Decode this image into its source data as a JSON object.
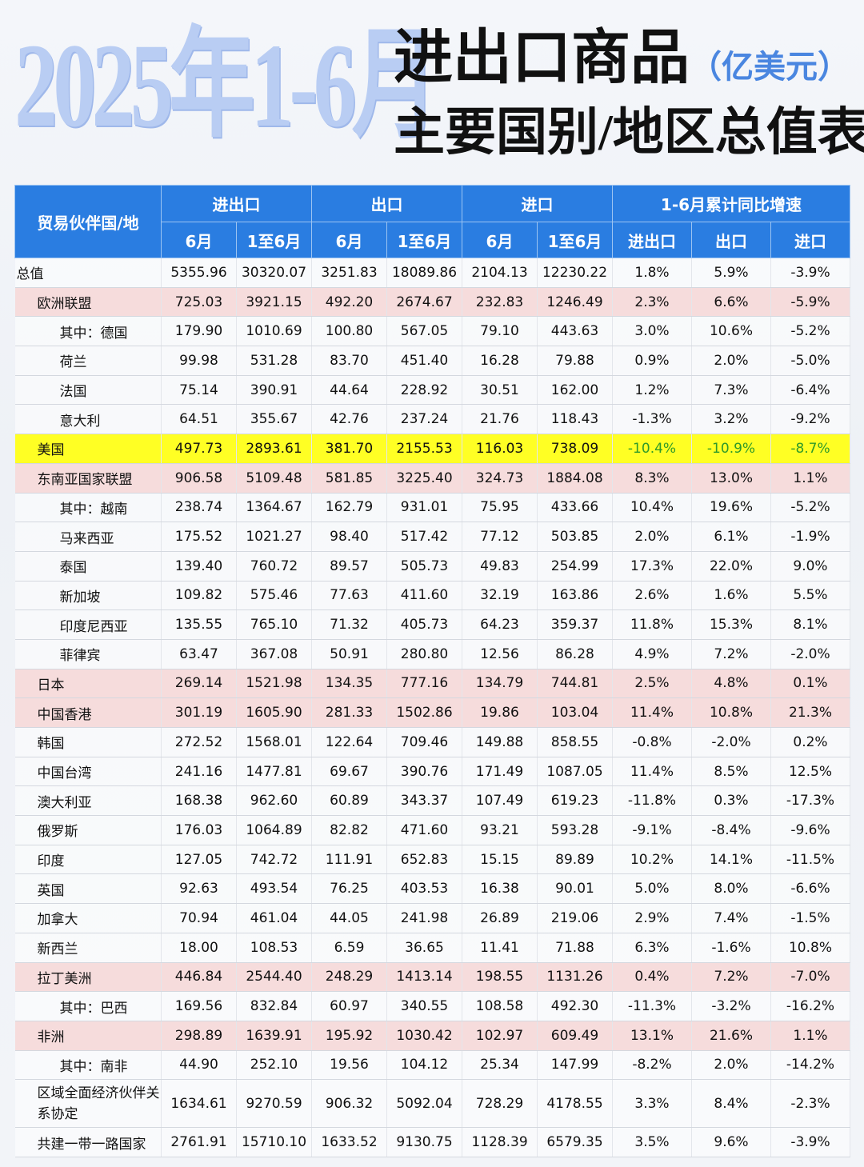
{
  "header": {
    "year_title": "2025年1-6月",
    "title_line1": "进出口商品",
    "unit": "（亿美元）",
    "title_line2": "主要国别/地区总值表"
  },
  "table": {
    "partner_header": "贸易伙伴国/地",
    "group_headers": [
      "进出口",
      "出口",
      "进口",
      "1-6月累计同比增速"
    ],
    "sub_headers": [
      "6月",
      "1至6月",
      "6月",
      "1至6月",
      "6月",
      "1至6月",
      "进出口",
      "出口",
      "进口"
    ],
    "rows": [
      {
        "name": "总值",
        "values": [
          "5355.96",
          "30320.07",
          "3251.83",
          "18089.86",
          "2104.13",
          "12230.22",
          "1.8%",
          "5.9%",
          "-3.9%"
        ]
      },
      {
        "name": "欧洲联盟",
        "values": [
          "725.03",
          "3921.15",
          "492.20",
          "2674.67",
          "232.83",
          "1246.49",
          "2.3%",
          "6.6%",
          "-5.9%"
        ]
      },
      {
        "name": "其中：德国",
        "values": [
          "179.90",
          "1010.69",
          "100.80",
          "567.05",
          "79.10",
          "443.63",
          "3.0%",
          "10.6%",
          "-5.2%"
        ]
      },
      {
        "name": "荷兰",
        "values": [
          "99.98",
          "531.28",
          "83.70",
          "451.40",
          "16.28",
          "79.88",
          "0.9%",
          "2.0%",
          "-5.0%"
        ]
      },
      {
        "name": "法国",
        "values": [
          "75.14",
          "390.91",
          "44.64",
          "228.92",
          "30.51",
          "162.00",
          "1.2%",
          "7.3%",
          "-6.4%"
        ]
      },
      {
        "name": "意大利",
        "values": [
          "64.51",
          "355.67",
          "42.76",
          "237.24",
          "21.76",
          "118.43",
          "-1.3%",
          "3.2%",
          "-9.2%"
        ]
      },
      {
        "name": "美国",
        "values": [
          "497.73",
          "2893.61",
          "381.70",
          "2155.53",
          "116.03",
          "738.09",
          "-10.4%",
          "-10.9%",
          "-8.7%"
        ]
      },
      {
        "name": "东南亚国家联盟",
        "values": [
          "906.58",
          "5109.48",
          "581.85",
          "3225.40",
          "324.73",
          "1884.08",
          "8.3%",
          "13.0%",
          "1.1%"
        ]
      },
      {
        "name": "其中：越南",
        "values": [
          "238.74",
          "1364.67",
          "162.79",
          "931.01",
          "75.95",
          "433.66",
          "10.4%",
          "19.6%",
          "-5.2%"
        ]
      },
      {
        "name": "马来西亚",
        "values": [
          "175.52",
          "1021.27",
          "98.40",
          "517.42",
          "77.12",
          "503.85",
          "2.0%",
          "6.1%",
          "-1.9%"
        ]
      },
      {
        "name": "泰国",
        "values": [
          "139.40",
          "760.72",
          "89.57",
          "505.73",
          "49.83",
          "254.99",
          "17.3%",
          "22.0%",
          "9.0%"
        ]
      },
      {
        "name": "新加坡",
        "values": [
          "109.82",
          "575.46",
          "77.63",
          "411.60",
          "32.19",
          "163.86",
          "2.6%",
          "1.6%",
          "5.5%"
        ]
      },
      {
        "name": "印度尼西亚",
        "values": [
          "135.55",
          "765.10",
          "71.32",
          "405.73",
          "64.23",
          "359.37",
          "11.8%",
          "15.3%",
          "8.1%"
        ]
      },
      {
        "name": "菲律宾",
        "values": [
          "63.47",
          "367.08",
          "50.91",
          "280.80",
          "12.56",
          "86.28",
          "4.9%",
          "7.2%",
          "-2.0%"
        ]
      },
      {
        "name": "日本",
        "values": [
          "269.14",
          "1521.98",
          "134.35",
          "777.16",
          "134.79",
          "744.81",
          "2.5%",
          "4.8%",
          "0.1%"
        ]
      },
      {
        "name": "中国香港",
        "values": [
          "301.19",
          "1605.90",
          "281.33",
          "1502.86",
          "19.86",
          "103.04",
          "11.4%",
          "10.8%",
          "21.3%"
        ]
      },
      {
        "name": "韩国",
        "values": [
          "272.52",
          "1568.01",
          "122.64",
          "709.46",
          "149.88",
          "858.55",
          "-0.8%",
          "-2.0%",
          "0.2%"
        ]
      },
      {
        "name": "中国台湾",
        "values": [
          "241.16",
          "1477.81",
          "69.67",
          "390.76",
          "171.49",
          "1087.05",
          "11.4%",
          "8.5%",
          "12.5%"
        ]
      },
      {
        "name": "澳大利亚",
        "values": [
          "168.38",
          "962.60",
          "60.89",
          "343.37",
          "107.49",
          "619.23",
          "-11.8%",
          "0.3%",
          "-17.3%"
        ]
      },
      {
        "name": "俄罗斯",
        "values": [
          "176.03",
          "1064.89",
          "82.82",
          "471.60",
          "93.21",
          "593.28",
          "-9.1%",
          "-8.4%",
          "-9.6%"
        ]
      },
      {
        "name": "印度",
        "values": [
          "127.05",
          "742.72",
          "111.91",
          "652.83",
          "15.15",
          "89.89",
          "10.2%",
          "14.1%",
          "-11.5%"
        ]
      },
      {
        "name": "英国",
        "values": [
          "92.63",
          "493.54",
          "76.25",
          "403.53",
          "16.38",
          "90.01",
          "5.0%",
          "8.0%",
          "-6.6%"
        ]
      },
      {
        "name": "加拿大",
        "values": [
          "70.94",
          "461.04",
          "44.05",
          "241.98",
          "26.89",
          "219.06",
          "2.9%",
          "7.4%",
          "-1.5%"
        ]
      },
      {
        "name": "新西兰",
        "values": [
          "18.00",
          "108.53",
          "6.59",
          "36.65",
          "11.41",
          "71.88",
          "6.3%",
          "-1.6%",
          "10.8%"
        ]
      },
      {
        "name": "拉丁美洲",
        "values": [
          "446.84",
          "2544.40",
          "248.29",
          "1413.14",
          "198.55",
          "1131.26",
          "0.4%",
          "7.2%",
          "-7.0%"
        ]
      },
      {
        "name": "其中：巴西",
        "values": [
          "169.56",
          "832.84",
          "60.97",
          "340.55",
          "108.58",
          "492.30",
          "-11.3%",
          "-3.2%",
          "-16.2%"
        ]
      },
      {
        "name": "非洲",
        "values": [
          "298.89",
          "1639.91",
          "195.92",
          "1030.42",
          "102.97",
          "609.49",
          "13.1%",
          "21.6%",
          "1.1%"
        ]
      },
      {
        "name": "其中：南非",
        "values": [
          "44.90",
          "252.10",
          "19.56",
          "104.12",
          "25.34",
          "147.99",
          "-8.2%",
          "2.0%",
          "-14.2%"
        ]
      },
      {
        "name": "区域全面经济伙伴关系协定",
        "values": [
          "1634.61",
          "9270.59",
          "906.32",
          "5092.04",
          "728.29",
          "4178.55",
          "3.3%",
          "8.4%",
          "-2.3%"
        ]
      },
      {
        "name": "共建一带一路国家",
        "values": [
          "2761.91",
          "15710.10",
          "1633.52",
          "9130.75",
          "1128.39",
          "6579.35",
          "3.5%",
          "9.6%",
          "-3.9%"
        ]
      }
    ]
  }
}
